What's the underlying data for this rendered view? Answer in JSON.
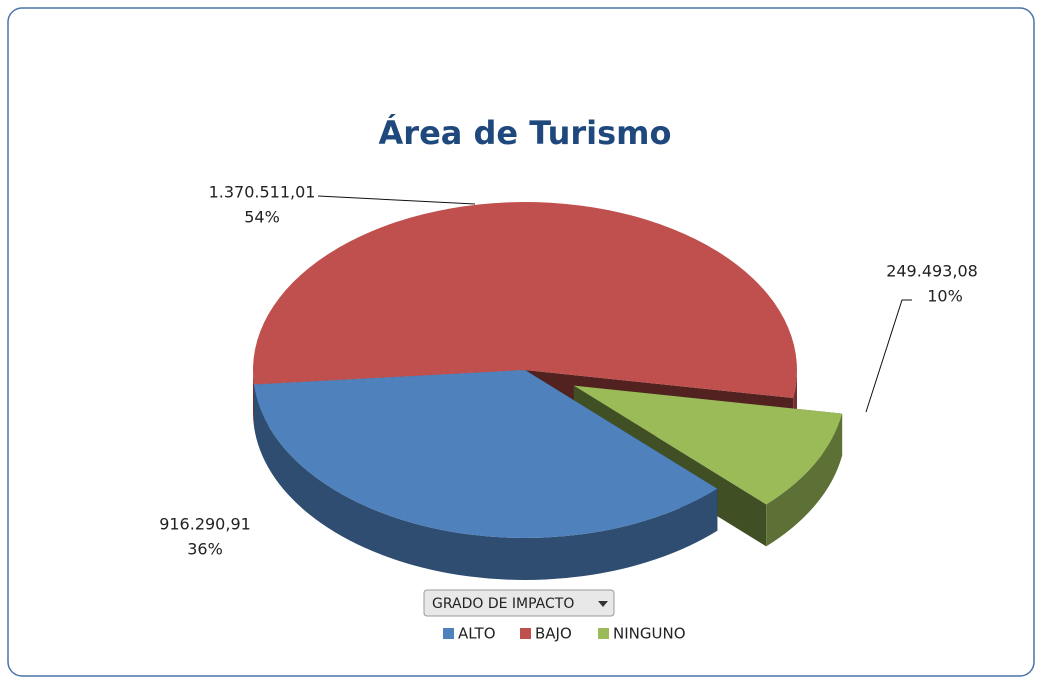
{
  "chart_data": {
    "type": "pie",
    "title": "Área de Turismo",
    "categories": [
      "ALTO",
      "BAJO",
      "NINGUNO"
    ],
    "values": [
      916290.91,
      1370511.01,
      249493.08
    ],
    "value_labels": [
      "916.290,91",
      "1.370.511,01",
      "249.493,08"
    ],
    "percent_labels": [
      "36%",
      "54%",
      "10%"
    ],
    "colors": [
      "#4f81bd",
      "#c0504d",
      "#9bbb59"
    ],
    "exploded": [
      false,
      false,
      true
    ],
    "filter_button": "GRADO DE IMPACTO"
  }
}
